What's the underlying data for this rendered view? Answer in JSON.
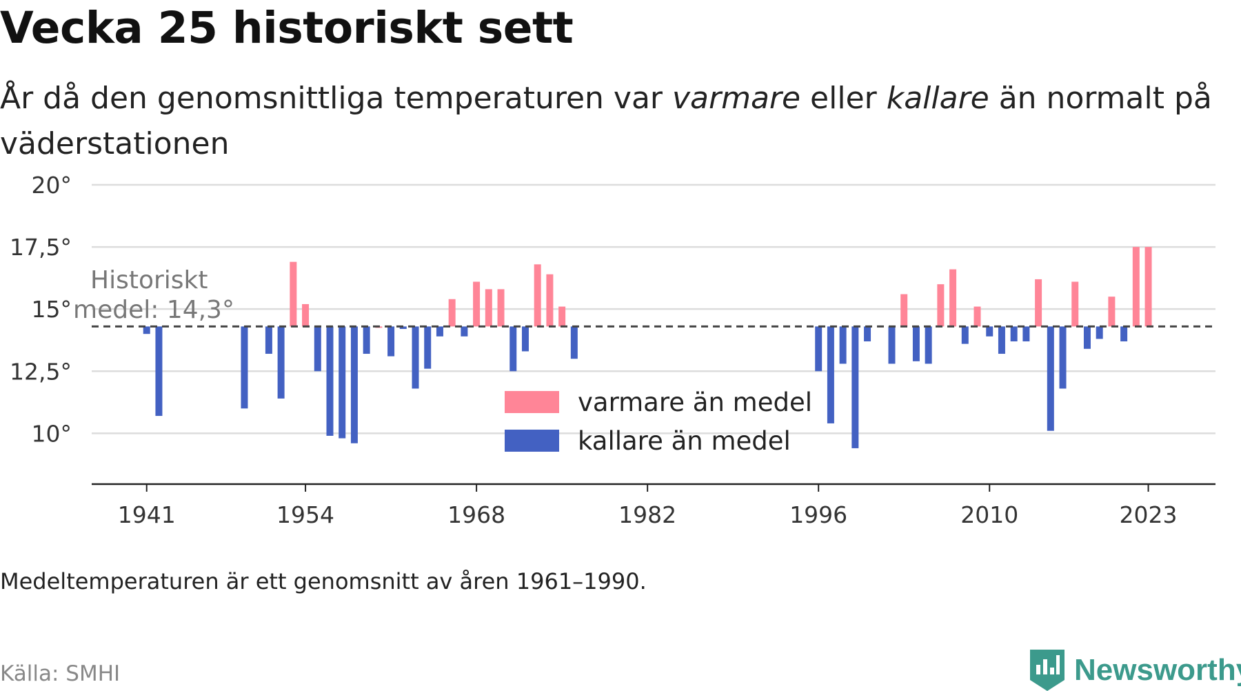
{
  "header": {
    "title": "Vecka 25 historiskt sett",
    "subtitle_part1": "År då den genomsnittliga temperaturen var ",
    "subtitle_em1": "varmare",
    "subtitle_part2": " eller ",
    "subtitle_em2": "kallare",
    "subtitle_part3": " än normalt på väderstationen"
  },
  "footer": {
    "note": "Medeltemperaturen är ett genomsnitt av åren 1961–1990.",
    "source": "Källa: SMHI",
    "brand": "Newsworthy",
    "brand_color": "#3c9a8c"
  },
  "chart_data": {
    "type": "bar",
    "title": "Vecka 25 historiskt sett",
    "baseline": 14.3,
    "baseline_label_line1": "Historiskt",
    "baseline_label_line2": "medel: 14,3°",
    "ylim": [
      7.9,
      20.5
    ],
    "yticks": [
      10,
      12.5,
      15,
      17.5,
      20
    ],
    "ytick_labels": [
      "10°",
      "12,5°",
      "15°",
      "17,5°",
      "20°"
    ],
    "xlim": [
      1936.5,
      2028.5
    ],
    "xticks": [
      1941,
      1954,
      1968,
      1982,
      1996,
      2010,
      2023
    ],
    "xtick_labels": [
      "1941",
      "1954",
      "1968",
      "1982",
      "1996",
      "2010",
      "2023"
    ],
    "grid": true,
    "legend_position": "center",
    "colors": {
      "warm": "#ff8597",
      "cold": "#4361c2"
    },
    "series": [
      {
        "name": "varmare än medel",
        "color_key": "warm"
      },
      {
        "name": "kallare än medel",
        "color_key": "cold"
      }
    ],
    "x": [
      1941,
      1942,
      1949,
      1951,
      1952,
      1953,
      1954,
      1955,
      1956,
      1957,
      1958,
      1959,
      1960,
      1961,
      1962,
      1963,
      1964,
      1965,
      1966,
      1967,
      1968,
      1969,
      1970,
      1971,
      1972,
      1973,
      1974,
      1975,
      1976,
      1996,
      1997,
      1998,
      1999,
      2000,
      2002,
      2003,
      2004,
      2005,
      2006,
      2007,
      2008,
      2009,
      2010,
      2011,
      2012,
      2013,
      2014,
      2015,
      2016,
      2017,
      2018,
      2019,
      2020,
      2021,
      2022,
      2023
    ],
    "values": [
      14.0,
      10.7,
      11.0,
      13.2,
      11.4,
      16.9,
      15.2,
      12.5,
      9.9,
      9.8,
      9.6,
      13.2,
      14.3,
      13.1,
      14.2,
      11.8,
      12.6,
      13.9,
      15.4,
      13.9,
      16.1,
      15.8,
      15.8,
      12.5,
      13.3,
      16.8,
      16.4,
      15.1,
      13.0,
      12.5,
      10.4,
      12.8,
      9.4,
      13.7,
      12.8,
      15.6,
      12.9,
      12.8,
      16.0,
      16.6,
      13.6,
      15.1,
      13.9,
      13.2,
      13.7,
      13.7,
      16.2,
      10.1,
      11.8,
      16.1,
      13.4,
      13.8,
      15.5,
      13.7,
      17.5,
      17.5
    ]
  }
}
